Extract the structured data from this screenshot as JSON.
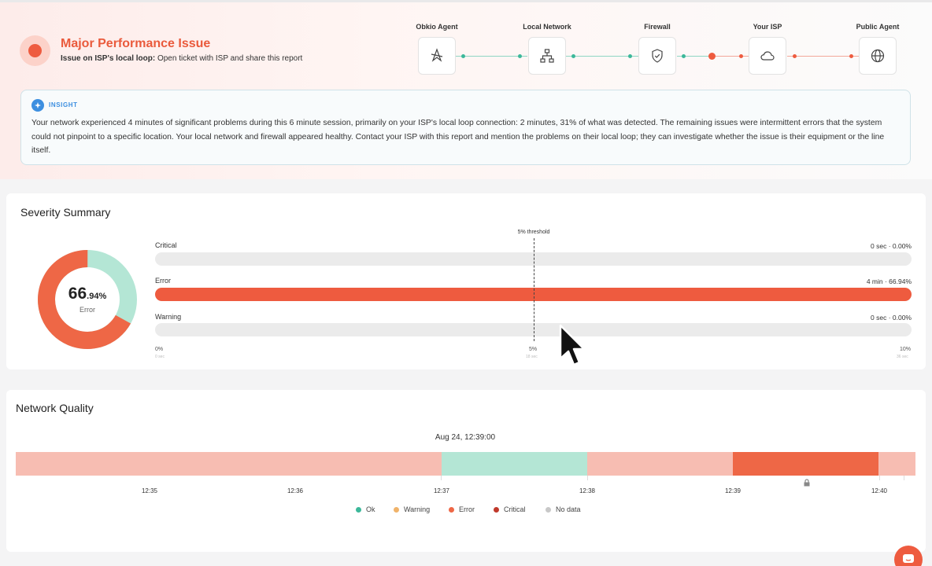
{
  "header": {
    "title": "Major Performance Issue",
    "subtitle_bold": "Issue on ISP's local loop:",
    "subtitle_rest": " Open ticket with ISP and share this report"
  },
  "path": {
    "nodes": [
      {
        "label": "Obkio Agent",
        "icon": "agent-icon"
      },
      {
        "label": "Local Network",
        "icon": "network-icon"
      },
      {
        "label": "Firewall",
        "icon": "shield-icon"
      },
      {
        "label": "Your ISP",
        "icon": "cloud-icon"
      },
      {
        "label": "Public Agent",
        "icon": "globe-icon"
      }
    ]
  },
  "insight": {
    "label": "INSIGHT",
    "text": "Your network experienced 4 minutes of significant problems during this 6 minute session, primarily on your ISP's local loop connection: 2 minutes, 31% of what was detected. The remaining issues were intermittent errors that the system could not pinpoint to a specific location. Your local network and firewall appeared healthy. Contact your ISP with this report and mention the problems on their local loop; they can investigate whether the issue is their equipment or the line itself."
  },
  "severity": {
    "title": "Severity Summary",
    "donut": {
      "value_main": "66",
      "value_decimal": ".94",
      "value_unit": "%",
      "label": "Error",
      "error_fraction": 0.6694
    },
    "threshold_label": "5% threshold",
    "bars": [
      {
        "label": "Critical",
        "value_text": "0 sec · 0.00%",
        "fraction": 0
      },
      {
        "label": "Error",
        "value_text": "4 min · 66.94%",
        "fraction": 1
      },
      {
        "label": "Warning",
        "value_text": "0 sec · 0.00%",
        "fraction": 0
      }
    ],
    "ticks": [
      {
        "label": "0%",
        "sub": "0 sec"
      },
      {
        "label": "5%",
        "sub": "18 sec"
      },
      {
        "label": "10%",
        "sub": "36 sec"
      }
    ]
  },
  "quality": {
    "title": "Network Quality",
    "timestamp": "Aug 24, 12:39:00",
    "time_labels": [
      "12:35",
      "12:36",
      "12:37",
      "12:38",
      "12:39",
      "12:40"
    ],
    "segments": [
      {
        "status": "Error (light)",
        "color": "#f7bdb2",
        "fraction": 0.473
      },
      {
        "status": "Ok",
        "color": "#b4e6d5",
        "fraction": 0.162
      },
      {
        "status": "Error (light)",
        "color": "#f7bdb2",
        "fraction": 0.162
      },
      {
        "status": "Error",
        "color": "#ee6746",
        "fraction": 0.162
      },
      {
        "status": "Error (light)",
        "color": "#f7bdb2",
        "fraction": 0.041
      }
    ],
    "legend": [
      {
        "label": "Ok",
        "color": "#3cb89a"
      },
      {
        "label": "Warning",
        "color": "#f0b36a"
      },
      {
        "label": "Error",
        "color": "#ee6746"
      },
      {
        "label": "Critical",
        "color": "#c0392b"
      },
      {
        "label": "No data",
        "color": "#c8c8c8"
      }
    ]
  },
  "colors": {
    "accent": "#ee5b3f",
    "ok": "#3cb89a",
    "info": "#3d8fe0"
  }
}
